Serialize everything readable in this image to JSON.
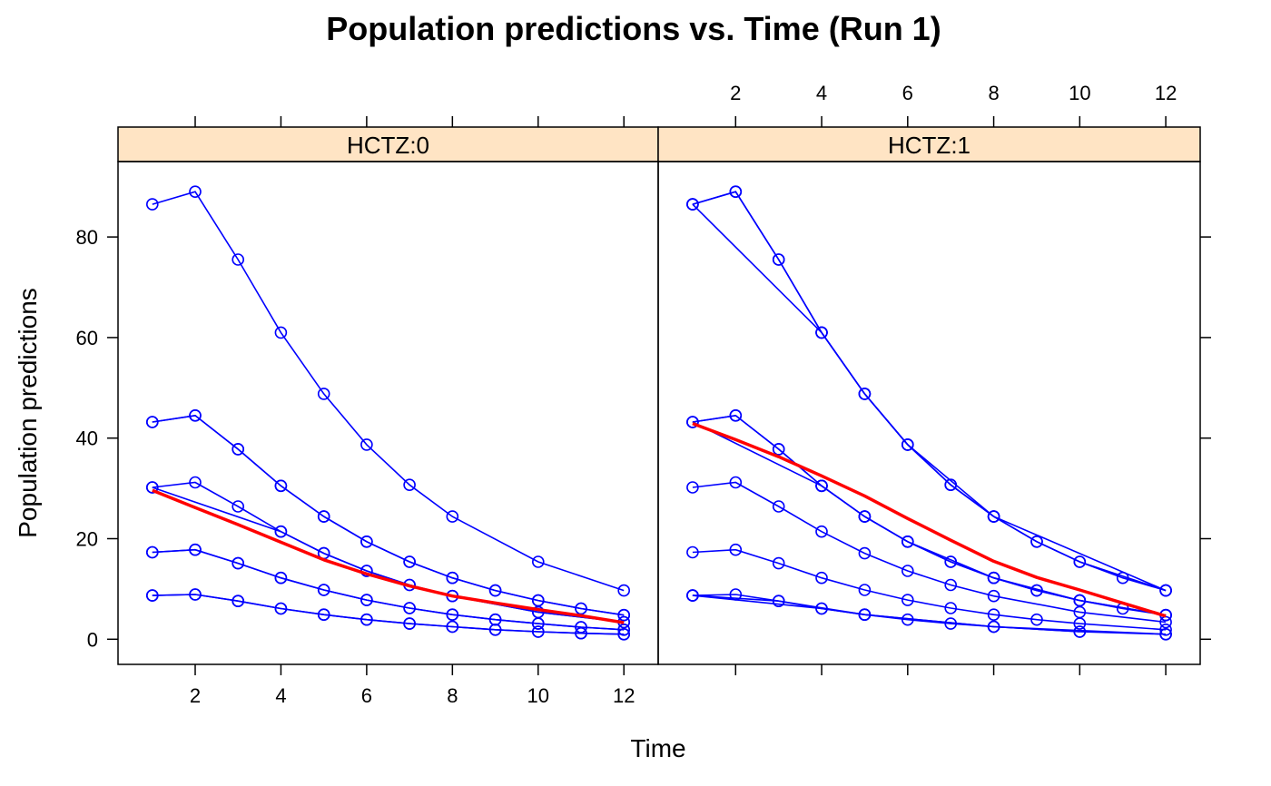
{
  "chart_data": {
    "type": "line",
    "title": "Population predictions vs. Time (Run 1)",
    "xlabel": "Time",
    "ylabel": "Population predictions",
    "xlim": [
      0.2,
      12.8
    ],
    "ylim": [
      -5,
      95
    ],
    "x_ticks": [
      2,
      4,
      6,
      8,
      10,
      12
    ],
    "y_ticks": [
      0,
      20,
      40,
      60,
      80
    ],
    "grid": false,
    "colors": {
      "series": "#0000ff",
      "smooth": "#ff0000",
      "strip": "#ffe4c4",
      "frame": "#000000"
    },
    "panels": [
      {
        "strip": "HCTZ:0",
        "series": [
          {
            "x": [
              1,
              2,
              3,
              4,
              5,
              6,
              7,
              8,
              10,
              12
            ],
            "y": [
              86.5,
              89.0,
              75.5,
              61.0,
              48.8,
              38.7,
              30.7,
              24.4,
              15.4,
              9.7
            ]
          },
          {
            "x": [
              1,
              2,
              3,
              4,
              5,
              6,
              7,
              8,
              9,
              10,
              11,
              12
            ],
            "y": [
              43.2,
              44.5,
              37.8,
              30.5,
              24.4,
              19.4,
              15.4,
              12.2,
              9.7,
              7.7,
              6.1,
              4.8
            ]
          },
          {
            "x": [
              1,
              2,
              3,
              4,
              5,
              6,
              7,
              8,
              9,
              10,
              11,
              12
            ],
            "y": [
              43.2,
              44.5,
              37.8,
              30.5,
              24.4,
              19.4,
              15.4,
              12.2,
              9.7,
              7.7,
              6.1,
              4.8
            ]
          },
          {
            "x": [
              1,
              2,
              3,
              4,
              5,
              6,
              7,
              8,
              10,
              12
            ],
            "y": [
              30.2,
              31.2,
              26.4,
              21.4,
              17.1,
              13.6,
              10.8,
              8.6,
              5.4,
              3.4
            ]
          },
          {
            "x": [
              1,
              4,
              5,
              6,
              7,
              8,
              10,
              12
            ],
            "y": [
              30.2,
              21.4,
              17.1,
              13.6,
              10.8,
              8.6,
              5.4,
              3.4
            ]
          },
          {
            "x": [
              1,
              2,
              3,
              4,
              5,
              6,
              7,
              8,
              9,
              10,
              11,
              12
            ],
            "y": [
              17.3,
              17.8,
              15.1,
              12.2,
              9.8,
              7.8,
              6.2,
              4.9,
              3.9,
              3.1,
              2.4,
              1.9
            ]
          },
          {
            "x": [
              1,
              2,
              3,
              4,
              5,
              6,
              7,
              8,
              9,
              10,
              11,
              12
            ],
            "y": [
              17.3,
              17.8,
              15.1,
              12.2,
              9.8,
              7.8,
              6.2,
              4.9,
              3.9,
              3.1,
              2.4,
              1.9
            ]
          },
          {
            "x": [
              1,
              2,
              3,
              4,
              5,
              6,
              7,
              8,
              9,
              10,
              11,
              12
            ],
            "y": [
              8.7,
              8.9,
              7.6,
              6.1,
              4.9,
              3.9,
              3.1,
              2.5,
              1.9,
              1.5,
              1.2,
              1.0
            ]
          },
          {
            "x": [
              1,
              2,
              3,
              4,
              5,
              6,
              7,
              8,
              9,
              10,
              11,
              12
            ],
            "y": [
              8.7,
              8.9,
              7.6,
              6.1,
              4.9,
              3.9,
              3.1,
              2.5,
              1.9,
              1.5,
              1.2,
              1.0
            ]
          }
        ],
        "smooth": {
          "x": [
            1,
            2,
            3,
            4,
            5,
            6,
            7,
            8,
            9,
            10,
            11,
            12
          ],
          "y": [
            29.6,
            26.2,
            22.8,
            19.3,
            15.8,
            13.0,
            10.6,
            8.6,
            7.2,
            5.9,
            4.7,
            3.3
          ]
        }
      },
      {
        "strip": "HCTZ:1",
        "series": [
          {
            "x": [
              1,
              2,
              3,
              4,
              5,
              6,
              7,
              8,
              9,
              10,
              11,
              12
            ],
            "y": [
              86.5,
              89.0,
              75.5,
              61.0,
              48.8,
              38.7,
              30.7,
              24.4,
              19.4,
              15.4,
              12.2,
              9.7
            ]
          },
          {
            "x": [
              1,
              2,
              3,
              4,
              5,
              6,
              7,
              8,
              9,
              10,
              12
            ],
            "y": [
              86.5,
              89.0,
              75.5,
              61.0,
              48.8,
              38.7,
              30.7,
              24.4,
              19.4,
              15.4,
              9.7
            ]
          },
          {
            "x": [
              1,
              4,
              5,
              6,
              8,
              12
            ],
            "y": [
              86.5,
              61.0,
              48.8,
              38.7,
              24.4,
              9.7
            ]
          },
          {
            "x": [
              1,
              2,
              3,
              4,
              5,
              6,
              7,
              8,
              9,
              10,
              11,
              12
            ],
            "y": [
              43.2,
              44.5,
              37.8,
              30.5,
              24.4,
              19.4,
              15.4,
              12.2,
              9.7,
              7.7,
              6.1,
              4.8
            ]
          },
          {
            "x": [
              1,
              2,
              3,
              4,
              5,
              6,
              7,
              8,
              9,
              10,
              12
            ],
            "y": [
              43.2,
              44.5,
              37.8,
              30.5,
              24.4,
              19.4,
              15.4,
              12.2,
              9.7,
              7.7,
              4.8
            ]
          },
          {
            "x": [
              1,
              4,
              5,
              6,
              8,
              10,
              12
            ],
            "y": [
              43.2,
              30.5,
              24.4,
              19.4,
              12.2,
              7.7,
              4.8
            ]
          },
          {
            "x": [
              1,
              2,
              3,
              4,
              5,
              6,
              7,
              8,
              10,
              12
            ],
            "y": [
              30.2,
              31.2,
              26.4,
              21.4,
              17.1,
              13.6,
              10.8,
              8.6,
              5.4,
              3.4
            ]
          },
          {
            "x": [
              1,
              2,
              3,
              4,
              5,
              6,
              7,
              8,
              9,
              10,
              12
            ],
            "y": [
              17.3,
              17.8,
              15.1,
              12.2,
              9.8,
              7.8,
              6.2,
              4.9,
              3.9,
              3.1,
              1.9
            ]
          },
          {
            "x": [
              1,
              2,
              3,
              4,
              5,
              6,
              7,
              8,
              10,
              12
            ],
            "y": [
              8.7,
              8.9,
              7.6,
              6.1,
              4.9,
              3.9,
              3.1,
              2.5,
              1.5,
              1.0
            ]
          },
          {
            "x": [
              1,
              3,
              5,
              8,
              12
            ],
            "y": [
              8.7,
              7.6,
              4.9,
              2.5,
              1.0
            ]
          },
          {
            "x": [
              1,
              4,
              5,
              8,
              10
            ],
            "y": [
              8.7,
              6.1,
              4.9,
              2.5,
              1.5
            ]
          }
        ],
        "smooth": {
          "x": [
            1,
            2,
            3,
            4,
            5,
            6,
            7,
            8,
            9,
            10,
            11,
            12
          ],
          "y": [
            42.9,
            39.7,
            36.3,
            32.5,
            28.5,
            24.0,
            19.7,
            15.5,
            12.3,
            9.8,
            7.2,
            4.6
          ]
        }
      }
    ]
  }
}
